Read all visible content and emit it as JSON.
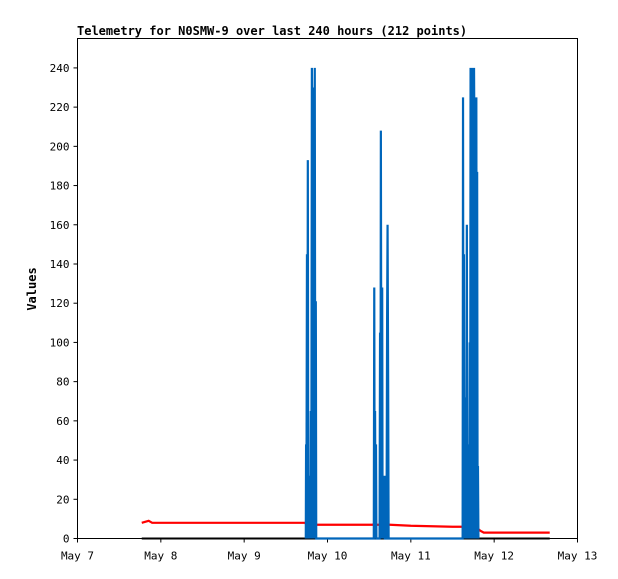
{
  "chart_data": {
    "type": "line",
    "title": "Telemetry for N0SMW-9 over last 240 hours (212 points)",
    "xlabel": "",
    "ylabel": "Values",
    "x_axis": {
      "type": "date",
      "range": [
        "May 7",
        "May 13"
      ],
      "ticks": [
        "May 7",
        "May 8",
        "May 9",
        "May 10",
        "May 11",
        "May 12",
        "May 13"
      ]
    },
    "y_axis": {
      "range": [
        0,
        255
      ],
      "ticks": [
        0,
        20,
        40,
        60,
        80,
        100,
        120,
        140,
        160,
        180,
        200,
        220,
        240
      ]
    },
    "grid": false,
    "legend": "none",
    "series": [
      {
        "color": "#0066bb",
        "points": [
          [
            "May 9 17:45",
            0
          ],
          [
            "May 9 17:50",
            48
          ],
          [
            "May 9 17:55",
            0
          ],
          [
            "May 9 18:05",
            145
          ],
          [
            "May 9 18:12",
            0
          ],
          [
            "May 9 18:20",
            193
          ],
          [
            "May 9 18:28",
            0
          ],
          [
            "May 9 18:40",
            17
          ],
          [
            "May 9 18:48",
            0
          ],
          [
            "May 9 18:58",
            32
          ],
          [
            "May 9 19:05",
            0
          ],
          [
            "May 9 19:12",
            65
          ],
          [
            "May 9 19:20",
            0
          ],
          [
            "May 9 19:30",
            240
          ],
          [
            "May 9 19:38",
            165
          ],
          [
            "May 9 19:46",
            230
          ],
          [
            "May 9 19:54",
            0
          ],
          [
            "May 9 20:00",
            208
          ],
          [
            "May 9 20:06",
            0
          ],
          [
            "May 9 20:12",
            187
          ],
          [
            "May 9 20:20",
            240
          ],
          [
            "May 9 20:30",
            0
          ],
          [
            "May 9 20:38",
            121
          ],
          [
            "May 9 20:45",
            0
          ],
          [
            "May 10 13:20",
            0
          ],
          [
            "May 10 13:28",
            128
          ],
          [
            "May 10 13:35",
            0
          ],
          [
            "May 10 13:42",
            65
          ],
          [
            "May 10 13:50",
            0
          ],
          [
            "May 10 13:58",
            48
          ],
          [
            "May 10 14:05",
            0
          ],
          [
            "May 10 15:00",
            0
          ],
          [
            "May 10 15:08",
            105
          ],
          [
            "May 10 15:15",
            0
          ],
          [
            "May 10 15:22",
            208
          ],
          [
            "May 10 15:30",
            65
          ],
          [
            "May 10 15:38",
            0
          ],
          [
            "May 10 15:45",
            128
          ],
          [
            "May 10 15:52",
            0
          ],
          [
            "May 10 16:05",
            32
          ],
          [
            "May 10 16:12",
            0
          ],
          [
            "May 10 16:25",
            32
          ],
          [
            "May 10 16:32",
            0
          ],
          [
            "May 10 17:00",
            0
          ],
          [
            "May 10 17:10",
            112
          ],
          [
            "May 10 17:18",
            160
          ],
          [
            "May 10 17:28",
            80
          ],
          [
            "May 10 17:36",
            0
          ],
          [
            "May 11 14:55",
            0
          ],
          [
            "May 11 15:02",
            225
          ],
          [
            "May 11 15:10",
            0
          ],
          [
            "May 11 15:18",
            145
          ],
          [
            "May 11 15:25",
            0
          ],
          [
            "May 11 15:35",
            72
          ],
          [
            "May 11 15:42",
            0
          ],
          [
            "May 11 15:50",
            24
          ],
          [
            "May 11 15:58",
            0
          ],
          [
            "May 11 16:08",
            160
          ],
          [
            "May 11 16:15",
            0
          ],
          [
            "May 11 16:25",
            24
          ],
          [
            "May 11 16:32",
            0
          ],
          [
            "May 11 16:42",
            48
          ],
          [
            "May 11 16:50",
            0
          ],
          [
            "May 11 16:58",
            100
          ],
          [
            "May 11 17:05",
            0
          ],
          [
            "May 11 17:12",
            240
          ],
          [
            "May 11 17:18",
            128
          ],
          [
            "May 11 17:25",
            0
          ],
          [
            "May 11 17:32",
            177
          ],
          [
            "May 11 17:38",
            160
          ],
          [
            "May 11 17:45",
            240
          ],
          [
            "May 11 17:52",
            0
          ],
          [
            "May 11 17:58",
            217
          ],
          [
            "May 11 18:05",
            172
          ],
          [
            "May 11 18:12",
            240
          ],
          [
            "May 11 18:18",
            208
          ],
          [
            "May 11 18:25",
            0
          ],
          [
            "May 11 18:30",
            225
          ],
          [
            "May 11 18:38",
            0
          ],
          [
            "May 11 18:45",
            112
          ],
          [
            "May 11 18:52",
            225
          ],
          [
            "May 11 19:00",
            0
          ],
          [
            "May 11 19:06",
            187
          ],
          [
            "May 11 19:14",
            0
          ],
          [
            "May 11 19:20",
            37
          ],
          [
            "May 11 19:28",
            0
          ]
        ]
      },
      {
        "color": "#ff0000",
        "points": [
          [
            "May 7 18:30",
            8
          ],
          [
            "May 7 19:30",
            8.5
          ],
          [
            "May 7 20:30",
            9
          ],
          [
            "May 7 21:30",
            8
          ],
          [
            "May 8 06:00",
            8
          ],
          [
            "May 9 12:00",
            8
          ],
          [
            "May 9 17:30",
            8
          ],
          [
            "May 9 18:00",
            7
          ],
          [
            "May 9 18:30",
            9
          ],
          [
            "May 9 19:00",
            7
          ],
          [
            "May 10 12:00",
            7
          ],
          [
            "May 10 13:10",
            7
          ],
          [
            "May 10 13:30",
            8
          ],
          [
            "May 10 13:50",
            7
          ],
          [
            "May 10 18:00",
            7
          ],
          [
            "May 11 00:00",
            6.5
          ],
          [
            "May 11 12:00",
            6
          ],
          [
            "May 11 18:00",
            6
          ],
          [
            "May 11 19:00",
            5.5
          ],
          [
            "May 11 20:00",
            4
          ],
          [
            "May 11 21:00",
            3
          ],
          [
            "May 12 16:00",
            3
          ]
        ]
      },
      {
        "color": "#000000",
        "points": [
          [
            "May 7 18:30",
            0
          ],
          [
            "May 12 16:00",
            0
          ]
        ]
      }
    ]
  }
}
